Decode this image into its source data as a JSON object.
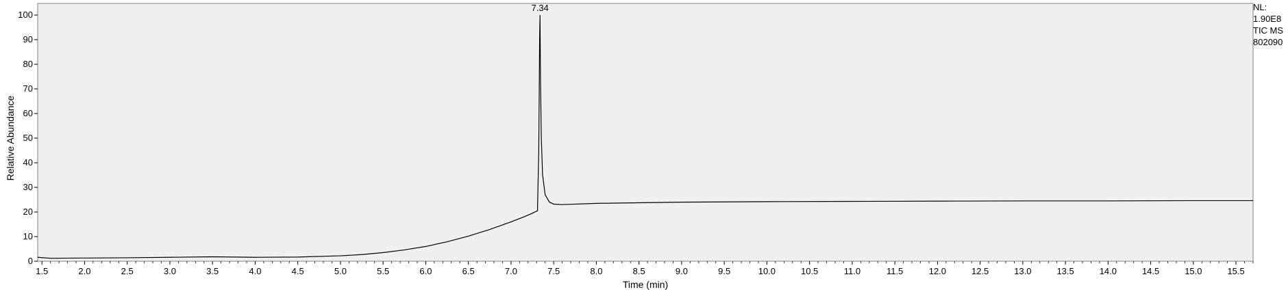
{
  "chart_data": {
    "type": "line",
    "title": "",
    "xlabel": "Time (min)",
    "ylabel": "Relative Abundance",
    "xlim": [
      1.45,
      15.7
    ],
    "ylim": [
      0,
      100
    ],
    "x_ticks": [
      "1.5",
      "2.0",
      "2.5",
      "3.0",
      "3.5",
      "4.0",
      "4.5",
      "5.0",
      "5.5",
      "6.0",
      "6.5",
      "7.0",
      "7.5",
      "8.0",
      "8.5",
      "9.0",
      "9.5",
      "10.0",
      "10.5",
      "11.0",
      "11.5",
      "12.0",
      "12.5",
      "13.0",
      "13.5",
      "14.0",
      "14.5",
      "15.0",
      "15.5"
    ],
    "y_ticks": [
      "0",
      "10",
      "20",
      "30",
      "40",
      "50",
      "60",
      "70",
      "80",
      "90",
      "100"
    ],
    "grid": false,
    "series": [
      {
        "x": [
          1.45,
          1.6,
          2.0,
          2.5,
          3.0,
          3.5,
          4.0,
          4.5,
          5.0,
          5.25,
          5.5,
          5.75,
          6.0,
          6.25,
          6.5,
          6.75,
          7.0,
          7.15,
          7.25,
          7.31,
          7.325,
          7.335,
          7.34,
          7.345,
          7.355,
          7.37,
          7.4,
          7.45,
          7.5,
          7.6,
          8.0,
          9.0,
          10.0,
          11.0,
          12.0,
          13.0,
          14.0,
          15.0,
          15.7
        ],
        "y": [
          1.6,
          1.2,
          1.3,
          1.4,
          1.6,
          1.8,
          1.6,
          1.7,
          2.2,
          2.7,
          3.5,
          4.6,
          6.0,
          7.9,
          10.2,
          12.9,
          16.0,
          18.0,
          19.5,
          20.5,
          45,
          90,
          100,
          75,
          50,
          35,
          27,
          24,
          23.2,
          23,
          23.5,
          24,
          24.2,
          24.3,
          24.4,
          24.5,
          24.5,
          24.6,
          24.6
        ]
      }
    ],
    "annotations": [
      {
        "text": "7.34",
        "x": 7.34,
        "y": 100
      }
    ]
  },
  "side_info": [
    "NL:",
    "1.90E8",
    "TIC  MS",
    "802090"
  ]
}
